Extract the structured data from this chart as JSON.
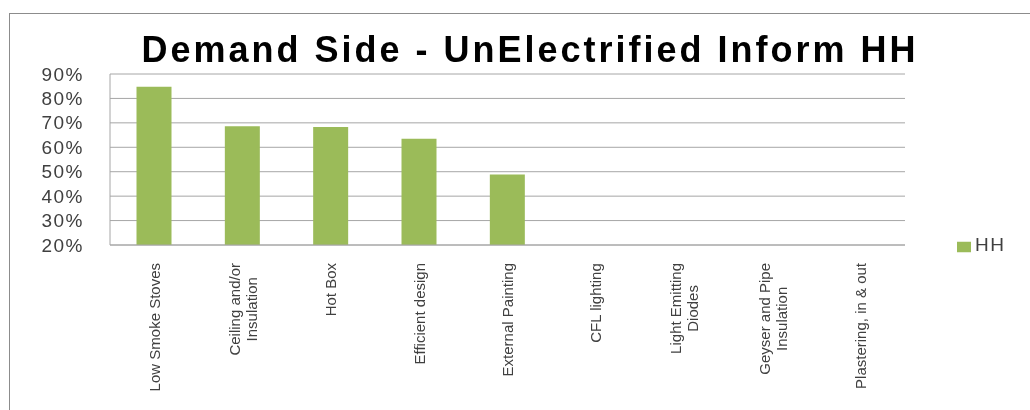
{
  "chart_data": {
    "type": "bar",
    "title": "Demand Side - UnElectrified Inform HH",
    "categories": [
      "Low Smoke Stoves",
      "Ceiling and/or Insulation",
      "Hot Box",
      "Efficient design",
      "External Painting",
      "CFL lighting",
      "Light Emitting Diodes",
      "Geyser and Pipe Insulation",
      "Plastering, in & out"
    ],
    "series": [
      {
        "name": "HH",
        "color": "#9bbb59",
        "values": [
          84.8,
          68.6,
          68.3,
          63.5,
          48.9,
          null,
          null,
          null,
          null
        ]
      }
    ],
    "ylim": [
      20,
      90
    ],
    "yticks": [
      {
        "value": 20,
        "label": "20%"
      },
      {
        "value": 30,
        "label": "30%"
      },
      {
        "value": 40,
        "label": "40%"
      },
      {
        "value": 50,
        "label": "50%"
      },
      {
        "value": 60,
        "label": "60%"
      },
      {
        "value": 70,
        "label": "70%"
      },
      {
        "value": 80,
        "label": "80%"
      },
      {
        "value": 90,
        "label": "90%"
      }
    ],
    "grid": "y",
    "legend": "right"
  }
}
